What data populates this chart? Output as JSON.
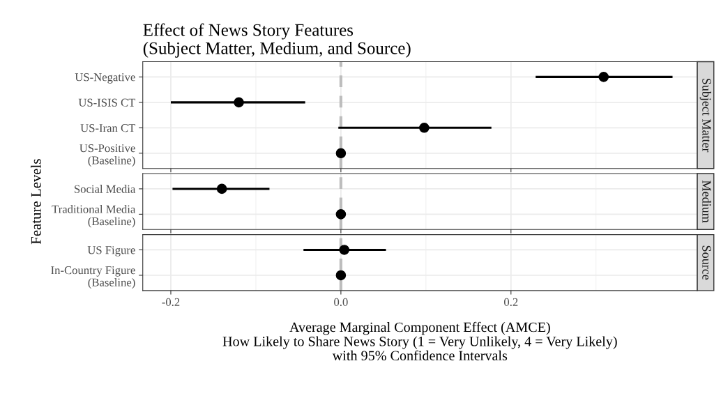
{
  "chart_data": [
    {
      "type": "scatter",
      "orientation": "horizontal",
      "title": "Effect of News Story Features\n(Subject Matter, Medium, and Source)",
      "categories": [
        "US-Negative",
        "US-ISIS CT",
        "US-Iran CT",
        "US-Positive\n(Baseline)"
      ],
      "values": [
        0.309,
        -0.12,
        0.098,
        0
      ],
      "errors": [
        [
          0.229,
          0.39
        ],
        [
          -0.2,
          -0.042
        ],
        [
          -0.003,
          0.177
        ],
        null
      ],
      "color": "#000000",
      "marker": "circle",
      "xlim": [
        -0.233,
        0.419
      ],
      "xticks": [
        -0.2,
        0.0,
        0.2
      ],
      "tick_labels": "y",
      "grid": true,
      "ref_lines": [
        {
          "axis": "x",
          "value": 0,
          "color": "#bdbdbd",
          "line_style": "dashed"
        }
      ],
      "annotations": [
        "Subject Matter"
      ]
    },
    {
      "type": "scatter",
      "orientation": "horizontal",
      "ylabel": "Feature Levels",
      "categories": [
        "Social Media",
        "Traditional Media\n(Baseline)"
      ],
      "values": [
        -0.14,
        0
      ],
      "errors": [
        [
          -0.198,
          -0.084
        ],
        null
      ],
      "color": "#000000",
      "marker": "circle",
      "xlim": [
        -0.233,
        0.419
      ],
      "xticks": [
        -0.2,
        0.0,
        0.2
      ],
      "tick_labels": "y",
      "grid": true,
      "ref_lines": [
        {
          "axis": "x",
          "value": 0,
          "color": "#bdbdbd",
          "line_style": "dashed"
        }
      ],
      "annotations": [
        "Medium"
      ]
    },
    {
      "type": "scatter",
      "orientation": "horizontal",
      "xlabel": "Average Marginal Component Effect (AMCE)\nHow Likely to Share News Story (1 = Very Unlikely, 4 = Very Likely)\nwith 95% Confidence Intervals",
      "categories": [
        "US Figure",
        "In-Country Figure\n(Baseline)"
      ],
      "values": [
        0.004,
        0
      ],
      "errors": [
        [
          -0.044,
          0.053
        ],
        null
      ],
      "color": "#000000",
      "marker": "circle",
      "xlim": [
        -0.233,
        0.419
      ],
      "xticks": [
        {
          "value": -0.2,
          "label": "-0.2"
        },
        {
          "value": 0,
          "label": "0.0"
        },
        0.2
      ],
      "grid": true,
      "ref_lines": [
        {
          "axis": "x",
          "value": 0,
          "color": "#bdbdbd",
          "line_style": "dashed"
        }
      ],
      "annotations": [
        "Source"
      ]
    }
  ]
}
